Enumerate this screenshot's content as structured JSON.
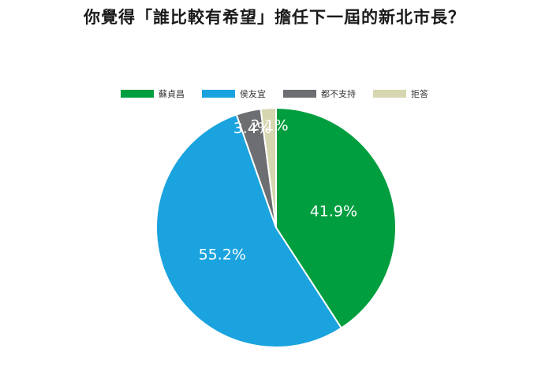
{
  "title": "你覺得「誰比較有希望」擔任下一屆的新北市長？",
  "chart_data": {
    "type": "pie",
    "slices": [
      {
        "label": "蘇貞昌",
        "value": 41.9,
        "display": "41.9%",
        "color": "#009e3f"
      },
      {
        "label": "侯友宜",
        "value": 55.2,
        "display": "55.2%",
        "color": "#1aa3de"
      },
      {
        "label": "都不支持",
        "value": 3.4,
        "display": "3.4%",
        "color": "#6d6e71"
      },
      {
        "label": "拒答",
        "value": 2.1,
        "display": "2.1%",
        "color": "#d6d6b0"
      }
    ],
    "start_angle_deg": 0,
    "direction": "clockwise",
    "legend_position": "top"
  }
}
